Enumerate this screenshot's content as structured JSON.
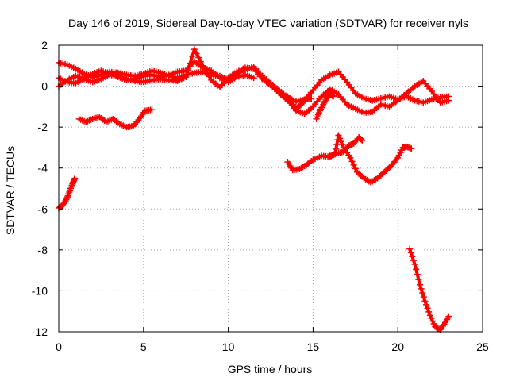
{
  "colors": {
    "series": "#ff0000",
    "grid": "#a0a0a0",
    "axis": "#000000",
    "background": "#ffffff"
  },
  "chart_data": {
    "type": "scatter",
    "title": "Day 146 of 2019, Sidereal Day-to-day VTEC variation (SDTVAR) for receiver nyls",
    "xlabel": "GPS time / hours",
    "ylabel": "SDTVAR / TECUs",
    "xlim": [
      0,
      25
    ],
    "ylim": [
      -12,
      2
    ],
    "xticks": [
      0,
      5,
      10,
      15,
      20,
      25
    ],
    "yticks": [
      -12,
      -10,
      -8,
      -6,
      -4,
      -2,
      0,
      2
    ],
    "xtick_labels": [
      "0",
      "5",
      "10",
      "15",
      "20",
      "25"
    ],
    "ytick_labels": [
      "-12",
      "-10",
      "-8",
      "-6",
      "-4",
      "-2",
      "0",
      "2"
    ],
    "grid": true,
    "marker": "cross",
    "series": [
      {
        "points": [
          [
            0.0,
            1.15
          ],
          [
            0.5,
            1.05
          ],
          [
            1.0,
            0.85
          ],
          [
            1.5,
            0.6
          ],
          [
            2.0,
            0.45
          ],
          [
            2.5,
            0.55
          ],
          [
            3.0,
            0.7
          ],
          [
            3.5,
            0.65
          ],
          [
            4.0,
            0.55
          ],
          [
            4.5,
            0.5
          ],
          [
            5.0,
            0.6
          ],
          [
            5.5,
            0.75
          ],
          [
            6.0,
            0.65
          ],
          [
            6.5,
            0.5
          ],
          [
            7.0,
            0.4
          ],
          [
            7.5,
            0.55
          ],
          [
            8.0,
            0.65
          ],
          [
            8.5,
            0.7
          ],
          [
            9.0,
            0.55
          ],
          [
            9.5,
            0.5
          ],
          [
            10.0,
            0.3
          ],
          [
            10.5,
            0.6
          ],
          [
            11.0,
            0.8
          ],
          [
            11.5,
            0.95
          ],
          [
            12.0,
            0.5
          ],
          [
            12.5,
            0.15
          ],
          [
            13.0,
            -0.2
          ],
          [
            13.5,
            -0.55
          ],
          [
            14.0,
            -0.75
          ],
          [
            14.5,
            -0.65
          ],
          [
            15.0,
            -0.2
          ],
          [
            15.5,
            0.3
          ],
          [
            16.0,
            0.55
          ],
          [
            16.5,
            0.7
          ],
          [
            17.0,
            0.2
          ],
          [
            17.5,
            -0.35
          ],
          [
            18.0,
            -0.6
          ],
          [
            18.5,
            -0.7
          ],
          [
            19.0,
            -0.6
          ],
          [
            19.5,
            -0.5
          ],
          [
            20.0,
            -0.65
          ],
          [
            20.5,
            -0.5
          ],
          [
            21.0,
            -0.7
          ],
          [
            21.5,
            -0.8
          ],
          [
            22.0,
            -0.65
          ],
          [
            22.5,
            -0.55
          ],
          [
            23.0,
            -0.5
          ]
        ]
      },
      {
        "points": [
          [
            0.0,
            0.0
          ],
          [
            0.5,
            0.3
          ],
          [
            1.0,
            0.5
          ],
          [
            1.5,
            0.35
          ],
          [
            2.0,
            0.2
          ],
          [
            2.5,
            0.35
          ],
          [
            3.0,
            0.55
          ],
          [
            3.5,
            0.5
          ],
          [
            4.0,
            0.35
          ],
          [
            4.5,
            0.25
          ],
          [
            5.0,
            0.2
          ],
          [
            5.5,
            0.3
          ],
          [
            6.0,
            0.35
          ],
          [
            6.5,
            0.3
          ],
          [
            7.0,
            0.25
          ],
          [
            7.5,
            0.45
          ],
          [
            8.0,
            1.8
          ],
          [
            8.5,
            1.0
          ],
          [
            9.0,
            0.3
          ],
          [
            9.5,
            -0.05
          ],
          [
            10.0,
            0.4
          ],
          [
            10.5,
            0.7
          ],
          [
            11.0,
            0.9
          ],
          [
            11.5,
            0.85
          ],
          [
            12.0,
            0.35
          ],
          [
            12.5,
            0.05
          ],
          [
            13.0,
            -0.35
          ],
          [
            13.5,
            -0.7
          ],
          [
            14.0,
            -1.2
          ],
          [
            14.5,
            -1.35
          ],
          [
            15.0,
            -1.0
          ],
          [
            15.5,
            -0.5
          ],
          [
            16.0,
            -0.15
          ],
          [
            16.5,
            -0.4
          ],
          [
            17.0,
            -0.9
          ],
          [
            17.5,
            -1.1
          ],
          [
            18.0,
            -1.3
          ],
          [
            18.5,
            -1.25
          ],
          [
            19.0,
            -0.9
          ],
          [
            19.5,
            -1.0
          ],
          [
            20.0,
            -0.7
          ],
          [
            20.5,
            -0.35
          ],
          [
            21.0,
            0.0
          ],
          [
            21.5,
            0.25
          ],
          [
            22.0,
            -0.25
          ],
          [
            22.5,
            -0.8
          ],
          [
            23.0,
            -0.7
          ]
        ]
      },
      {
        "points": [
          [
            0.0,
            0.4
          ],
          [
            0.5,
            0.2
          ],
          [
            1.0,
            0.15
          ],
          [
            1.5,
            0.4
          ],
          [
            2.0,
            0.6
          ],
          [
            2.5,
            0.75
          ],
          [
            3.0,
            0.6
          ],
          [
            3.5,
            0.45
          ],
          [
            4.0,
            0.3
          ],
          [
            4.5,
            0.35
          ],
          [
            5.0,
            0.5
          ],
          [
            5.5,
            0.55
          ],
          [
            6.0,
            0.45
          ],
          [
            6.5,
            0.55
          ],
          [
            7.0,
            0.7
          ],
          [
            7.5,
            0.75
          ],
          [
            8.0,
            1.2
          ],
          [
            8.5,
            0.9
          ],
          [
            9.0,
            0.75
          ],
          [
            9.5,
            0.4
          ],
          [
            10.0,
            0.2
          ],
          [
            10.5,
            0.45
          ],
          [
            11.0,
            0.55
          ],
          [
            11.5,
            0.4
          ]
        ]
      },
      {
        "points": [
          [
            13.5,
            -0.5
          ],
          [
            13.8,
            -0.9
          ],
          [
            14.0,
            -1.1
          ],
          [
            14.3,
            -0.9
          ],
          [
            14.6,
            -0.6
          ],
          [
            14.9,
            -0.6
          ]
        ]
      },
      {
        "points": [
          [
            15.2,
            -1.6
          ],
          [
            15.4,
            -1.2
          ],
          [
            15.6,
            -0.9
          ],
          [
            15.8,
            -0.6
          ],
          [
            16.0,
            -0.4
          ],
          [
            16.2,
            -0.5
          ]
        ]
      },
      {
        "points": [
          [
            1.2,
            -1.6
          ],
          [
            1.6,
            -1.75
          ],
          [
            2.0,
            -1.6
          ],
          [
            2.4,
            -1.5
          ],
          [
            2.8,
            -1.75
          ],
          [
            3.2,
            -1.6
          ],
          [
            3.6,
            -1.85
          ],
          [
            4.0,
            -2.0
          ],
          [
            4.4,
            -1.95
          ],
          [
            4.8,
            -1.55
          ],
          [
            5.1,
            -1.2
          ],
          [
            5.5,
            -1.15
          ]
        ]
      },
      {
        "points": [
          [
            13.5,
            -3.7
          ],
          [
            13.8,
            -4.1
          ],
          [
            14.2,
            -4.05
          ],
          [
            14.6,
            -3.85
          ],
          [
            15.0,
            -3.6
          ],
          [
            15.5,
            -3.4
          ],
          [
            16.0,
            -3.45
          ],
          [
            16.3,
            -3.3
          ],
          [
            16.5,
            -2.4
          ],
          [
            16.8,
            -3.0
          ],
          [
            17.2,
            -3.5
          ],
          [
            17.6,
            -4.2
          ],
          [
            18.0,
            -4.5
          ],
          [
            18.4,
            -4.7
          ],
          [
            18.8,
            -4.5
          ],
          [
            19.2,
            -4.2
          ],
          [
            19.6,
            -3.9
          ],
          [
            20.0,
            -3.5
          ],
          [
            20.3,
            -3.0
          ],
          [
            20.5,
            -2.95
          ],
          [
            20.8,
            -3.05
          ]
        ]
      },
      {
        "points": [
          [
            16.0,
            -3.4
          ],
          [
            16.4,
            -3.3
          ],
          [
            16.8,
            -3.2
          ],
          [
            17.1,
            -2.9
          ],
          [
            17.4,
            -2.8
          ],
          [
            17.7,
            -2.5
          ],
          [
            17.9,
            -2.65
          ]
        ]
      },
      {
        "points": [
          [
            0.0,
            -5.95
          ],
          [
            0.2,
            -5.85
          ],
          [
            0.4,
            -5.6
          ],
          [
            0.55,
            -5.35
          ],
          [
            0.7,
            -5.0
          ],
          [
            0.85,
            -4.7
          ],
          [
            0.95,
            -4.5
          ]
        ]
      },
      {
        "points": [
          [
            20.7,
            -7.95
          ],
          [
            21.0,
            -8.7
          ],
          [
            21.3,
            -9.7
          ],
          [
            21.6,
            -10.5
          ],
          [
            21.9,
            -11.2
          ],
          [
            22.2,
            -11.75
          ],
          [
            22.5,
            -11.9
          ],
          [
            22.8,
            -11.55
          ],
          [
            23.0,
            -11.25
          ]
        ]
      }
    ]
  }
}
